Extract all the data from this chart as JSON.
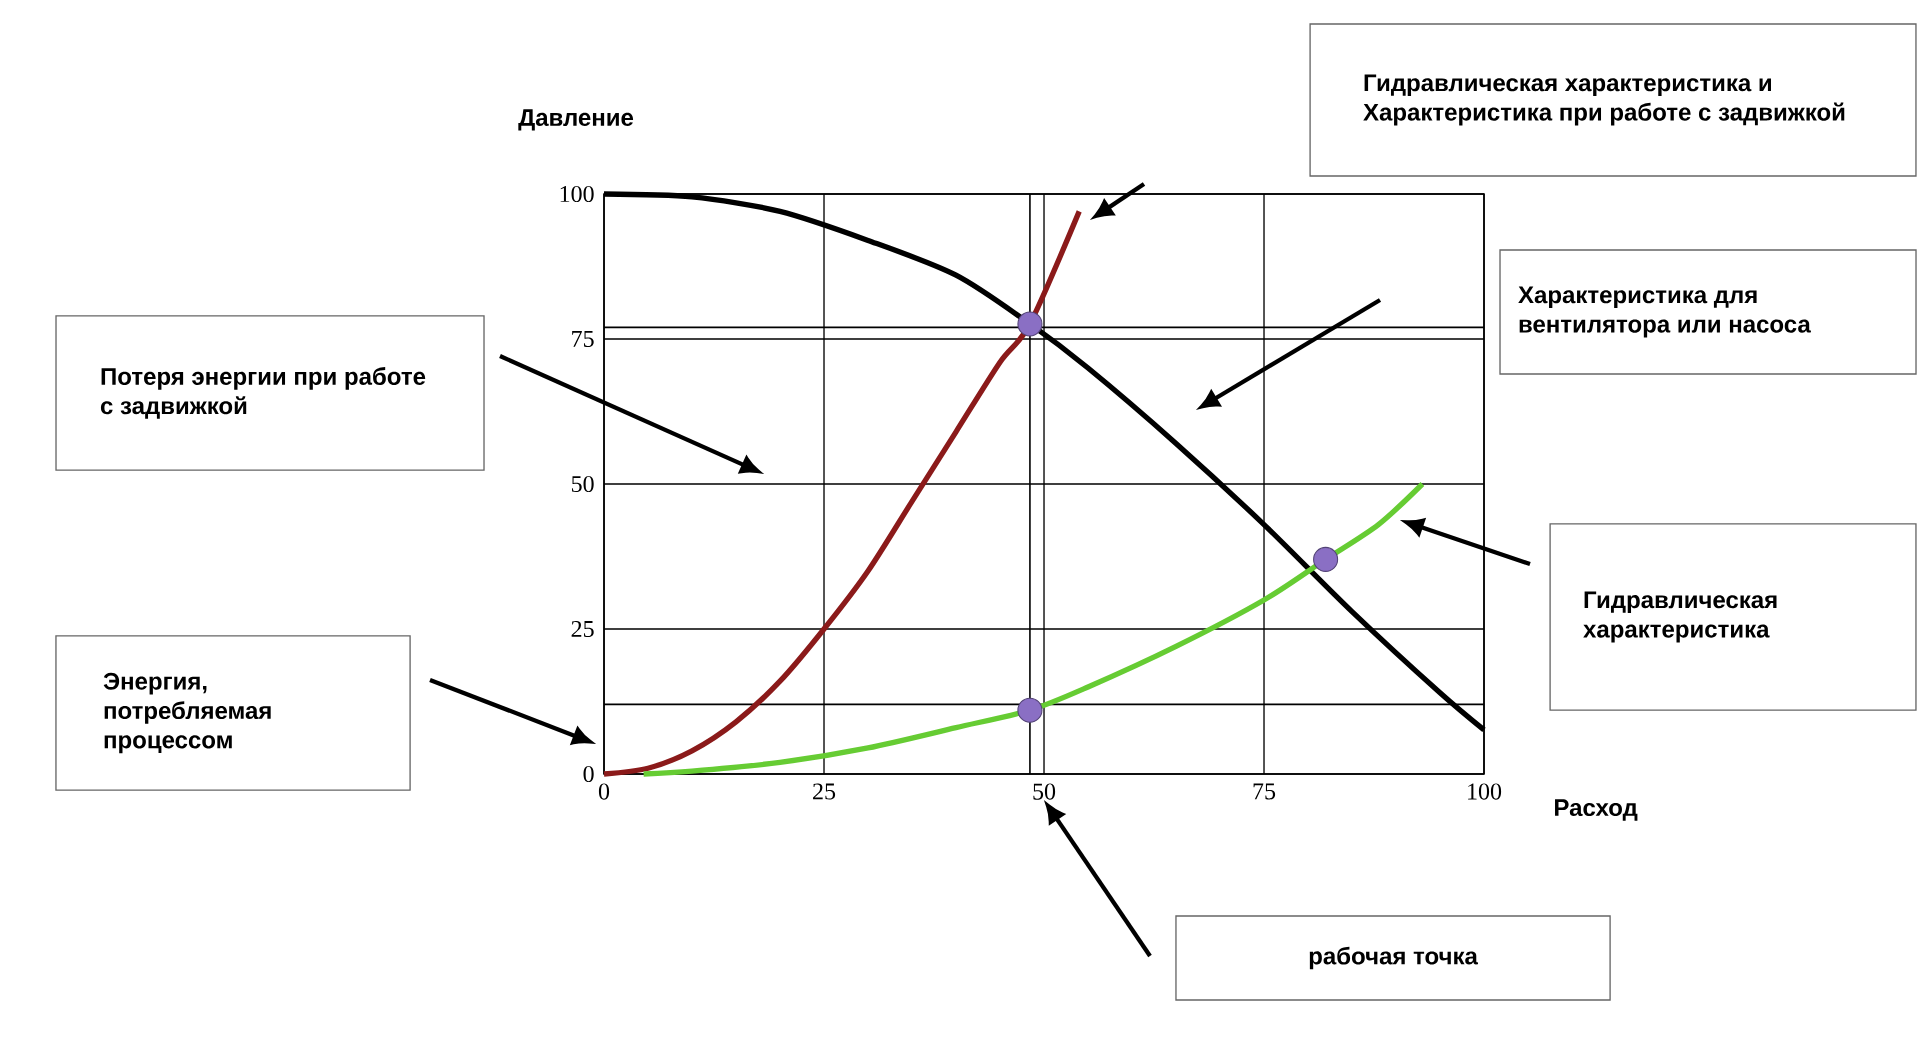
{
  "chart_data": {
    "type": "line",
    "xlabel": "Расход",
    "ylabel": "Давление",
    "xlim": [
      0,
      100
    ],
    "ylim": [
      0,
      100
    ],
    "xticks": [
      0,
      25,
      50,
      75,
      100
    ],
    "yticks": [
      0,
      25,
      50,
      75,
      100
    ],
    "grid": true,
    "series": [
      {
        "color": "#000000",
        "x": [
          0,
          10,
          20,
          30,
          40,
          48.4,
          55,
          65,
          75,
          85,
          95,
          100
        ],
        "values": [
          100,
          99.5,
          97,
          92,
          86,
          77.6,
          70,
          57,
          43,
          28,
          14,
          7.6
        ]
      },
      {
        "color": "#8b1a1a",
        "x": [
          0,
          5,
          10,
          15,
          20,
          25,
          30,
          35,
          40,
          45,
          48.4,
          54
        ],
        "values": [
          0,
          1,
          4,
          9,
          16,
          25,
          35,
          47,
          59,
          71,
          77.6,
          97
        ]
      },
      {
        "color": "#66cc33",
        "x": [
          4.5,
          10,
          20,
          30,
          40,
          48.4,
          55,
          65,
          75,
          82,
          88,
          93
        ],
        "values": [
          0,
          0.5,
          2,
          4.5,
          8,
          11,
          15,
          22,
          30,
          37,
          43,
          50
        ]
      },
      {
        "type": "scatter",
        "marker": "circle",
        "color": "#8a6fc4",
        "x": [
          48.4,
          48.4,
          82
        ],
        "values": [
          77.6,
          11,
          37
        ]
      }
    ],
    "ref_lines": [
      {
        "axis": "y",
        "value": 77
      },
      {
        "axis": "y",
        "value": 12
      },
      {
        "axis": "x",
        "value": 48.4
      }
    ],
    "annotations": [
      "Гидравлическая характеристика и Характеристика при работе с задвижкой",
      "Характеристика для вентилятора или насоса",
      "Гидравлическая характеристика",
      "Потеря энергии при работе с задвижкой",
      "Энергия, потребляемая процессом",
      "рабочая точка"
    ]
  }
}
